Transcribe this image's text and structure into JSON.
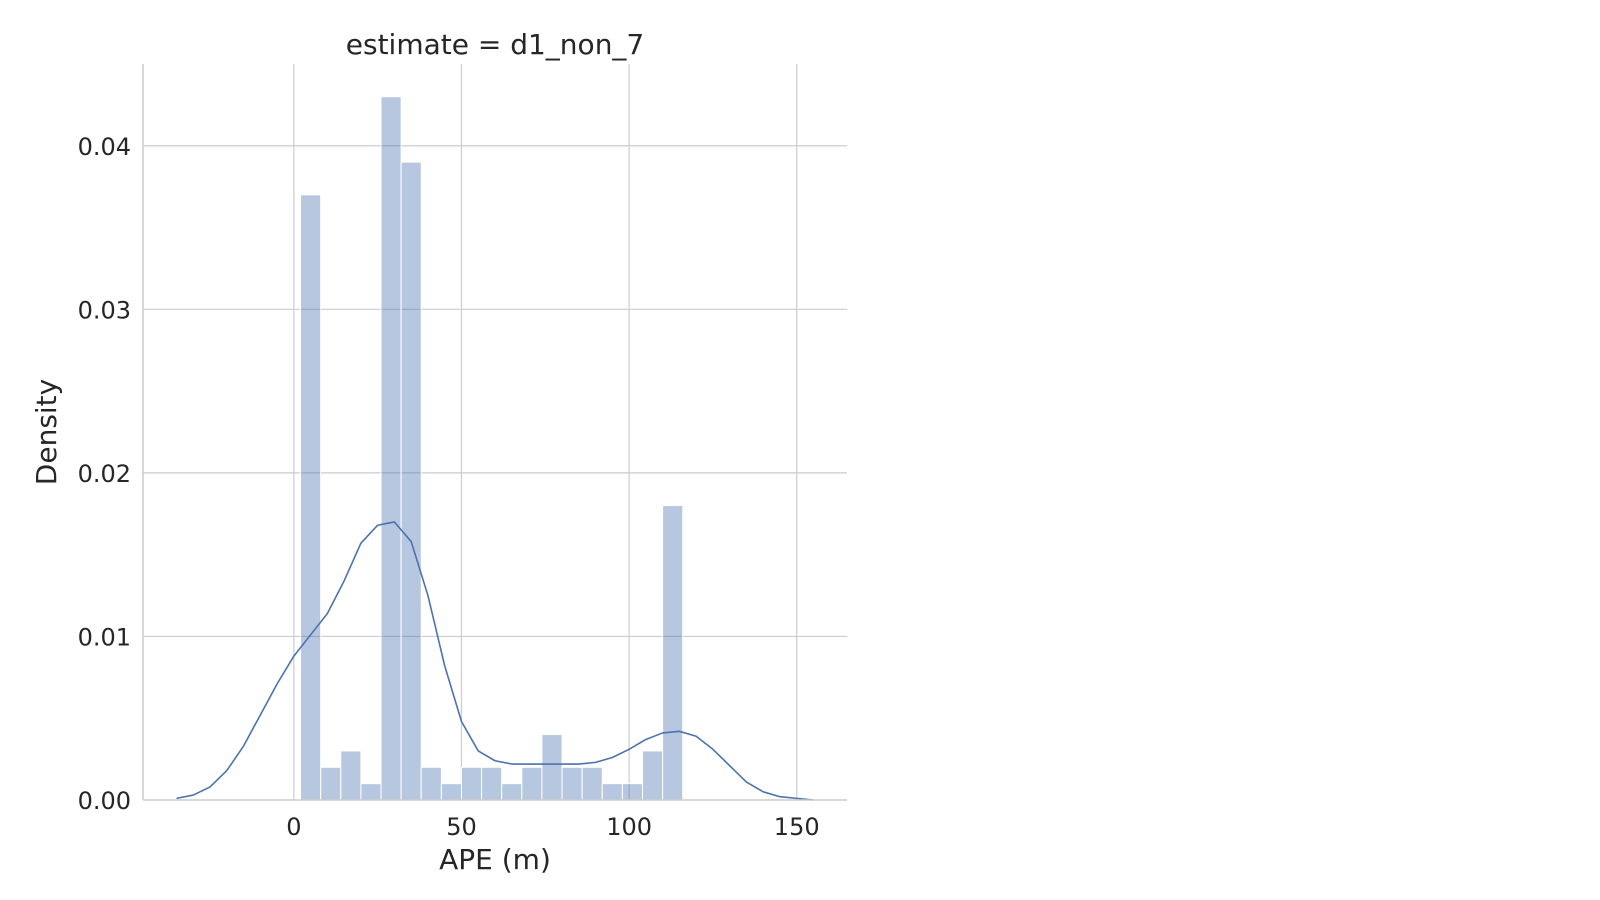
{
  "chart_data": {
    "type": "bar",
    "title": "estimate = d1_non_7",
    "xlabel": "APE (m)",
    "ylabel": "Density",
    "xlim": [
      -45,
      165
    ],
    "ylim": [
      0,
      0.045
    ],
    "xticks": [
      0,
      50,
      100,
      150
    ],
    "xtick_labels": [
      "0",
      "50",
      "100",
      "150"
    ],
    "yticks": [
      0.0,
      0.01,
      0.02,
      0.03,
      0.04
    ],
    "ytick_labels": [
      "0.00",
      "0.01",
      "0.02",
      "0.03",
      "0.04"
    ],
    "grid": true,
    "histogram": {
      "bin_edges": [
        2,
        8,
        14,
        20,
        26,
        32,
        38,
        44,
        50,
        56,
        62,
        68,
        74,
        80,
        86,
        92,
        98,
        104,
        110,
        116
      ],
      "densities": [
        0.037,
        0.002,
        0.003,
        0.001,
        0.043,
        0.039,
        0.002,
        0.001,
        0.002,
        0.002,
        0.001,
        0.002,
        0.004,
        0.002,
        0.002,
        0.001,
        0.001,
        0.003,
        0.018
      ],
      "color": "#4c72b0",
      "alpha": 0.4
    },
    "kde": {
      "color": "#4c72b0",
      "x": [
        -35,
        -30,
        -25,
        -20,
        -15,
        -10,
        -5,
        0,
        5,
        10,
        15,
        20,
        25,
        30,
        35,
        40,
        45,
        50,
        55,
        60,
        65,
        70,
        75,
        80,
        85,
        90,
        95,
        100,
        105,
        110,
        115,
        120,
        125,
        130,
        135,
        140,
        145,
        150,
        155
      ],
      "y": [
        0.0001,
        0.0003,
        0.0008,
        0.0018,
        0.0033,
        0.0052,
        0.0071,
        0.0088,
        0.0101,
        0.0114,
        0.0134,
        0.0157,
        0.0168,
        0.017,
        0.0158,
        0.0125,
        0.0082,
        0.0048,
        0.003,
        0.0024,
        0.0022,
        0.0022,
        0.0022,
        0.0022,
        0.0022,
        0.0023,
        0.0026,
        0.0031,
        0.0037,
        0.0041,
        0.0042,
        0.0039,
        0.0031,
        0.0021,
        0.0011,
        0.0005,
        0.0002,
        0.0001,
        0.0
      ]
    }
  }
}
